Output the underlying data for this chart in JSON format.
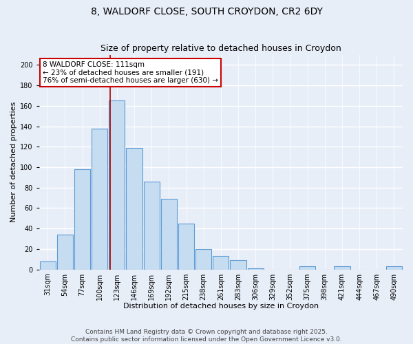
{
  "title": "8, WALDORF CLOSE, SOUTH CROYDON, CR2 6DY",
  "subtitle": "Size of property relative to detached houses in Croydon",
  "xlabel": "Distribution of detached houses by size in Croydon",
  "ylabel": "Number of detached properties",
  "bar_labels": [
    "31sqm",
    "54sqm",
    "77sqm",
    "100sqm",
    "123sqm",
    "146sqm",
    "169sqm",
    "192sqm",
    "215sqm",
    "238sqm",
    "261sqm",
    "283sqm",
    "306sqm",
    "329sqm",
    "352sqm",
    "375sqm",
    "398sqm",
    "421sqm",
    "444sqm",
    "467sqm",
    "490sqm"
  ],
  "bar_values": [
    8,
    34,
    98,
    138,
    165,
    119,
    86,
    69,
    45,
    20,
    13,
    9,
    1,
    0,
    0,
    3,
    0,
    3,
    0,
    0,
    3
  ],
  "bar_color": "#c6dcf0",
  "bar_edge_color": "#5b9bd5",
  "ylim": [
    0,
    210
  ],
  "yticks": [
    0,
    20,
    40,
    60,
    80,
    100,
    120,
    140,
    160,
    180,
    200
  ],
  "vline_color": "#aa0000",
  "vline_pos": 3.62,
  "annotation_title": "8 WALDORF CLOSE: 111sqm",
  "annotation_line1": "← 23% of detached houses are smaller (191)",
  "annotation_line2": "76% of semi-detached houses are larger (630) →",
  "footer1": "Contains HM Land Registry data © Crown copyright and database right 2025.",
  "footer2": "Contains public sector information licensed under the Open Government Licence v3.0.",
  "background_color": "#e8eef8",
  "plot_bg_color": "#e8eef8",
  "grid_color": "#ffffff",
  "title_fontsize": 10,
  "label_fontsize": 8,
  "tick_fontsize": 7,
  "footer_fontsize": 6.5,
  "annot_fontsize": 7.5
}
